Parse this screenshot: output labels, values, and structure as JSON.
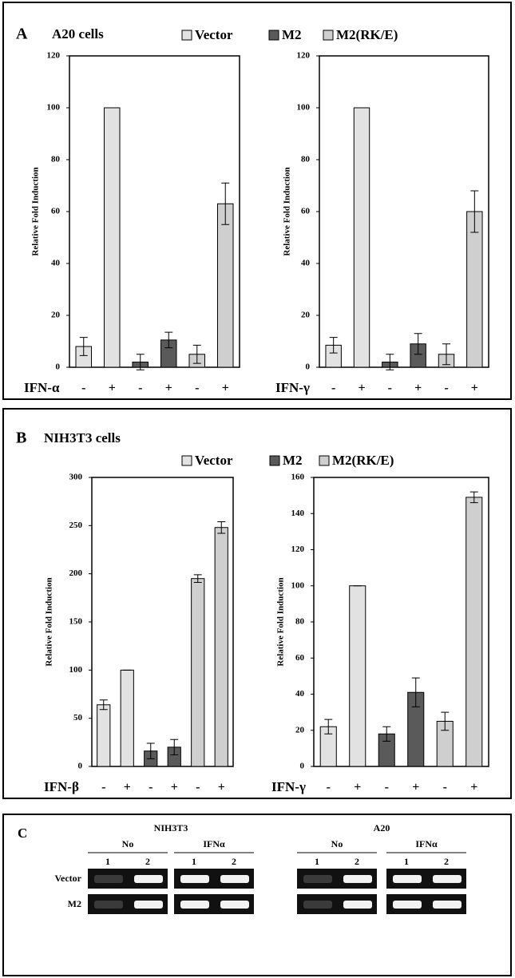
{
  "panels": [
    {
      "letter": "A",
      "title": "A20 cells",
      "legend": [
        {
          "name": "Vector",
          "color": "#e2e2e2"
        },
        {
          "name": "M2",
          "color": "#5a5a5a"
        },
        {
          "name": "M2(RK/E)",
          "color": "#cfcfcf"
        }
      ]
    },
    {
      "letter": "B",
      "title": "NIH3T3 cells",
      "legend": [
        {
          "name": "Vector",
          "color": "#e2e2e2"
        },
        {
          "name": "M2",
          "color": "#5a5a5a"
        },
        {
          "name": "M2(RK/E)",
          "color": "#cfcfcf"
        }
      ]
    }
  ],
  "chart_data": [
    {
      "type": "bar",
      "ylabel": "Relative Fold Induction",
      "xlabel": "IFN-α",
      "categories": [
        "-",
        "+",
        "-",
        "+",
        "-",
        "+"
      ],
      "values": [
        8,
        100,
        2,
        10.5,
        5,
        63
      ],
      "errors": [
        3.5,
        0,
        3,
        3,
        3.5,
        8
      ],
      "colors": [
        "#e2e2e2",
        "#e2e2e2",
        "#5a5a5a",
        "#5a5a5a",
        "#cfcfcf",
        "#cfcfcf"
      ],
      "ylim": [
        0,
        120
      ],
      "yticks": [
        0,
        20,
        40,
        60,
        80,
        100,
        120
      ]
    },
    {
      "type": "bar",
      "ylabel": "Relative Fold Induction",
      "xlabel": "IFN-γ",
      "categories": [
        "-",
        "+",
        "-",
        "+",
        "-",
        "+"
      ],
      "values": [
        8.5,
        100,
        2,
        9,
        5,
        60
      ],
      "errors": [
        3,
        0,
        3,
        4,
        4,
        8
      ],
      "colors": [
        "#e2e2e2",
        "#e2e2e2",
        "#5a5a5a",
        "#5a5a5a",
        "#cfcfcf",
        "#cfcfcf"
      ],
      "ylim": [
        0,
        120
      ],
      "yticks": [
        0,
        20,
        40,
        60,
        80,
        100,
        120
      ]
    },
    {
      "type": "bar",
      "ylabel": "Relative Fold Induction",
      "xlabel": "IFN-β",
      "categories": [
        "-",
        "+",
        "-",
        "+",
        "-",
        "+"
      ],
      "values": [
        64,
        100,
        16,
        20,
        195,
        248
      ],
      "errors": [
        5,
        0,
        8,
        8,
        4,
        6
      ],
      "colors": [
        "#e2e2e2",
        "#e2e2e2",
        "#5a5a5a",
        "#5a5a5a",
        "#cfcfcf",
        "#cfcfcf"
      ],
      "ylim": [
        0,
        300
      ],
      "yticks": [
        0,
        50,
        100,
        150,
        200,
        250,
        300
      ]
    },
    {
      "type": "bar",
      "ylabel": "Relative Fold Induction",
      "xlabel": "IFN-γ",
      "categories": [
        "-",
        "+",
        "-",
        "+",
        "-",
        "+"
      ],
      "values": [
        22,
        100,
        18,
        41,
        25,
        149
      ],
      "errors": [
        4,
        0,
        4,
        8,
        5,
        3
      ],
      "colors": [
        "#e2e2e2",
        "#e2e2e2",
        "#5a5a5a",
        "#5a5a5a",
        "#cfcfcf",
        "#cfcfcf"
      ],
      "ylim": [
        0,
        160
      ],
      "yticks": [
        0,
        20,
        40,
        60,
        80,
        100,
        120,
        140,
        160
      ]
    }
  ],
  "gel": {
    "letter": "C",
    "rows": [
      "Vector",
      "M2"
    ],
    "groups": [
      {
        "cell": "NIH3T3",
        "conditions": [
          {
            "label": "No",
            "lanes": [
              "1",
              "2"
            ]
          },
          {
            "label": "IFNα",
            "lanes": [
              "1",
              "2"
            ]
          }
        ]
      },
      {
        "cell": "A20",
        "conditions": [
          {
            "label": "No",
            "lanes": [
              "1",
              "2"
            ]
          },
          {
            "label": "IFNα",
            "lanes": [
              "1",
              "2"
            ]
          }
        ]
      }
    ]
  }
}
